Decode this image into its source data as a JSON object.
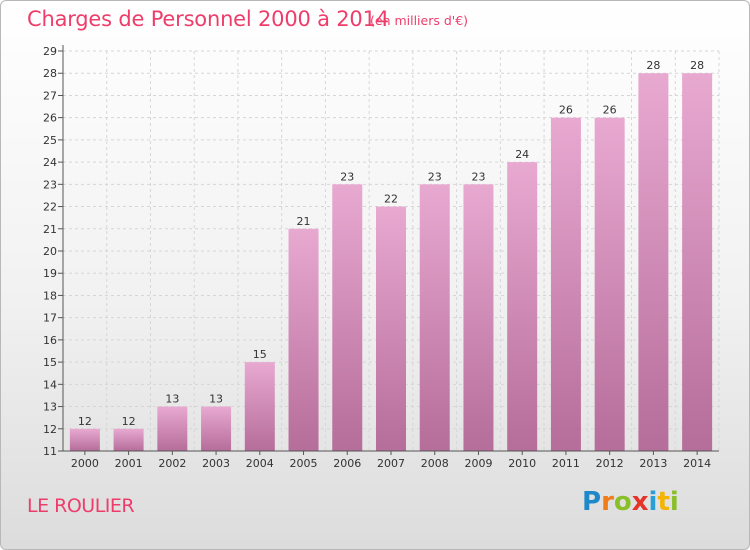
{
  "header": {
    "title": "Charges de Personnel 2000 à 2014",
    "unit": "(en milliers d'€)"
  },
  "footer": {
    "place": "LE ROULIER",
    "logo": {
      "letters": [
        "P",
        "r",
        "o",
        "x",
        "i",
        "t",
        "i"
      ],
      "colors": [
        "#1e88c9",
        "#f07d1a",
        "#8bbf2a",
        "#e6332a",
        "#2a9fd6",
        "#f4b400",
        "#8bbf2a"
      ]
    }
  },
  "chart_data": {
    "type": "bar",
    "title": "Charges de Personnel 2000 à 2014",
    "subtitle": "(en milliers d'€)",
    "categories": [
      "2000",
      "2001",
      "2002",
      "2003",
      "2004",
      "2005",
      "2006",
      "2007",
      "2008",
      "2009",
      "2010",
      "2011",
      "2012",
      "2013",
      "2014"
    ],
    "values": [
      12,
      12,
      13,
      13,
      15,
      21,
      23,
      22,
      23,
      23,
      24,
      26,
      26,
      28,
      28
    ],
    "xlabel": "",
    "ylabel": "",
    "ylim": [
      11,
      29
    ],
    "yticks": [
      11,
      12,
      13,
      14,
      15,
      16,
      17,
      18,
      19,
      20,
      21,
      22,
      23,
      24,
      25,
      26,
      27,
      28,
      29
    ],
    "grid": true,
    "legend": "none",
    "colors": {
      "bar_top": "#e8a9d1",
      "bar_bottom": "#b56d99",
      "grid": "#d6d6d6",
      "axis": "#555555"
    }
  }
}
